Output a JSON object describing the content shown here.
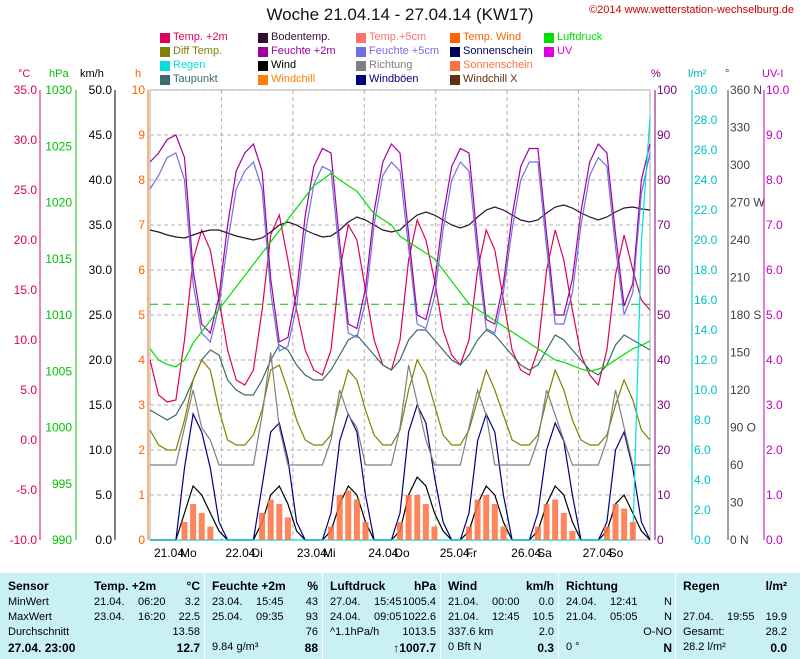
{
  "header": {
    "title": "Woche 21.04.14 - 27.04.14 (KW17)",
    "copyright": "©2014 www.wetterstation-wechselburg.de"
  },
  "legend": [
    {
      "label": "Temp. +2m",
      "color": "#e0005a"
    },
    {
      "label": "Diff Temp.",
      "color": "#808000"
    },
    {
      "label": "Regen",
      "color": "#00e0e0"
    },
    {
      "label": "Taupunkt",
      "color": "#3a6a6a"
    },
    {
      "label": "Bodentemp.",
      "color": "#301030"
    },
    {
      "label": "Feuchte +2m",
      "color": "#a000a0"
    },
    {
      "label": "Wind",
      "color": "#000000"
    },
    {
      "label": "Windchill",
      "color": "#ff8000"
    },
    {
      "label": "Temp.+5cm",
      "color": "#ff7070"
    },
    {
      "label": "Feuchte +5cm",
      "color": "#7070e0"
    },
    {
      "label": "Richtung",
      "color": "#808080"
    },
    {
      "label": "Windböen",
      "color": "#000080"
    },
    {
      "label": "Temp. Wind",
      "color": "#ff6000"
    },
    {
      "label": "Sonnenschein",
      "color": "#000060"
    },
    {
      "label": "Sonnenschein",
      "color": "#ff7040"
    },
    {
      "label": "Windchill X",
      "color": "#603010"
    },
    {
      "label": "Luftdruck",
      "color": "#00e000"
    },
    {
      "label": "UV",
      "color": "#e000e0"
    }
  ],
  "axis_units": {
    "temp": "°C",
    "pressure": "hPa",
    "wind": "km/h",
    "sun": "h",
    "humidity": "%",
    "rain": "l/m²",
    "direction": "°",
    "uv": "UV-I"
  },
  "chart_data": {
    "type": "line",
    "title": "Woche 21.04.14 - 27.04.14 (KW17)",
    "x_ticks": [
      "21.04.",
      "Mo",
      "22.04.",
      "Di",
      "23.04.",
      "Mi",
      "24.04.",
      "Do",
      "25.04.",
      "Fr",
      "26.04.",
      "Sa",
      "27.04.",
      "So"
    ],
    "axes": {
      "temp_c": {
        "range": [
          -10,
          35
        ],
        "ticks": [
          "35.0",
          "30.0",
          "25.0",
          "20.0",
          "15.0",
          "10.0",
          "5.0",
          "0.0",
          "-5.0",
          "-10.0"
        ],
        "color": "#e0005a"
      },
      "pressure_hpa": {
        "range": [
          990,
          1030
        ],
        "ticks": [
          "1030",
          "1025",
          "1020",
          "1015",
          "1010",
          "1005",
          "1000",
          "995",
          "990"
        ],
        "color": "#00c000"
      },
      "wind_kmh": {
        "range": [
          0,
          50
        ],
        "ticks": [
          "50.0",
          "45.0",
          "40.0",
          "35.0",
          "30.0",
          "25.0",
          "20.0",
          "15.0",
          "10.0",
          "5.0",
          "0.0"
        ],
        "color": "#000000"
      },
      "sun_h": {
        "range": [
          0,
          10
        ],
        "ticks": [
          "10",
          "9",
          "8",
          "7",
          "6",
          "5",
          "4",
          "3",
          "2",
          "1",
          "0"
        ],
        "color": "#ff6000"
      },
      "humidity_pct": {
        "range": [
          0,
          100
        ],
        "ticks": [
          "100",
          "90",
          "80",
          "70",
          "60",
          "50",
          "40",
          "30",
          "20",
          "10",
          "0"
        ],
        "color": "#800080"
      },
      "rain_lm2": {
        "range": [
          0,
          30
        ],
        "ticks": [
          "30.0",
          "28.0",
          "26.0",
          "24.0",
          "22.0",
          "20.0",
          "18.0",
          "16.0",
          "14.0",
          "12.0",
          "10.0",
          "8.0",
          "6.0",
          "4.0",
          "2.0",
          "0.0"
        ],
        "color": "#00c0c0"
      },
      "direction_deg": {
        "range": [
          0,
          360
        ],
        "ticks": [
          "360 N",
          "330",
          "300",
          "270 W",
          "240",
          "210",
          "180 S",
          "150",
          "120",
          "90 O",
          "60",
          "30",
          "0 N"
        ],
        "color": "#404040"
      },
      "uv_index": {
        "range": [
          0,
          10
        ],
        "ticks": [
          "10.0",
          "9.0",
          "8.0",
          "7.0",
          "6.0",
          "5.0",
          "4.0",
          "3.0",
          "2.0",
          "1.0",
          "0.0"
        ],
        "color": "#c000c0"
      }
    },
    "series": [
      {
        "name": "Temp. +2m",
        "axis": "temp_c",
        "color": "#e0005a",
        "values": [
          8.0,
          4.5,
          3.8,
          4.0,
          10.0,
          18.0,
          21.0,
          19.0,
          14.0,
          9.0,
          6.0,
          5.5,
          7.0,
          13.0,
          20.5,
          22.5,
          18.0,
          13.0,
          9.0,
          7.0,
          6.5,
          9.0,
          17.0,
          21.5,
          20.0,
          15.0,
          10.0,
          7.5,
          7.0,
          10.0,
          18.0,
          22.0,
          20.0,
          16.0,
          11.0,
          8.5,
          7.5,
          10.0,
          17.0,
          21.0,
          19.0,
          14.0,
          9.0,
          7.0,
          6.5,
          9.0,
          17.0,
          21.0,
          18.0,
          13.0,
          8.5,
          6.5,
          5.5,
          9.0,
          16.5,
          20.5,
          17.0,
          14.0,
          13.0
        ]
      },
      {
        "name": "Taupunkt",
        "axis": "temp_c",
        "color": "#3a6a6a",
        "values": [
          3.0,
          2.5,
          2.0,
          2.5,
          4.0,
          6.0,
          8.0,
          9.0,
          8.5,
          6.0,
          5.0,
          4.5,
          4.5,
          6.0,
          8.0,
          9.5,
          9.0,
          7.5,
          6.5,
          6.0,
          6.0,
          7.0,
          8.5,
          10.0,
          10.5,
          9.5,
          8.5,
          7.5,
          7.0,
          8.0,
          10.0,
          11.0,
          11.0,
          10.0,
          9.0,
          8.0,
          7.5,
          8.5,
          10.0,
          11.0,
          10.5,
          9.5,
          8.5,
          7.5,
          7.0,
          7.5,
          9.0,
          10.5,
          10.0,
          9.0,
          8.0,
          7.0,
          6.5,
          7.5,
          9.5,
          10.5,
          10.0,
          9.5,
          9.0
        ]
      },
      {
        "name": "Bodentemp.",
        "axis": "temp_c",
        "color": "#301030",
        "values": [
          21.0,
          20.8,
          20.5,
          20.3,
          20.2,
          20.5,
          20.8,
          21.0,
          21.0,
          20.7,
          20.4,
          20.2,
          20.0,
          20.2,
          20.8,
          21.5,
          21.8,
          21.5,
          21.0,
          20.6,
          20.3,
          20.4,
          21.0,
          21.8,
          22.3,
          22.0,
          21.5,
          21.0,
          20.8,
          21.0,
          21.8,
          22.5,
          22.8,
          22.5,
          22.0,
          21.5,
          21.2,
          21.5,
          22.3,
          23.0,
          23.3,
          23.0,
          22.5,
          22.0,
          21.8,
          22.0,
          22.7,
          23.3,
          23.5,
          23.2,
          22.7,
          22.3,
          22.0,
          22.3,
          22.8,
          23.2,
          23.3,
          23.1,
          23.0
        ]
      },
      {
        "name": "Diff Temp.",
        "axis": "temp_c",
        "color": "#808000",
        "values": [
          1.0,
          -0.5,
          -1.0,
          -1.0,
          2.0,
          6.0,
          8.0,
          7.0,
          3.0,
          0.0,
          -0.5,
          -0.5,
          0.5,
          3.0,
          7.0,
          7.5,
          5.0,
          2.0,
          0.0,
          -0.5,
          -0.5,
          0.5,
          4.0,
          7.0,
          6.0,
          3.0,
          0.5,
          -0.5,
          -0.5,
          1.0,
          5.0,
          8.0,
          6.5,
          3.5,
          0.5,
          -0.5,
          -0.5,
          1.0,
          4.0,
          7.0,
          5.0,
          2.5,
          0.0,
          -0.5,
          -0.5,
          0.5,
          4.0,
          7.0,
          5.0,
          2.0,
          0.0,
          -0.5,
          -0.5,
          0.5,
          3.5,
          6.0,
          4.0,
          1.0,
          0.0
        ]
      },
      {
        "name": "Feuchte +2m",
        "axis": "humidity_pct",
        "color": "#a000a0",
        "values": [
          84,
          86,
          89,
          90,
          85,
          60,
          48,
          46,
          54,
          70,
          82,
          86,
          88,
          82,
          58,
          44,
          45,
          55,
          72,
          83,
          87,
          86,
          66,
          48,
          47,
          56,
          73,
          84,
          88,
          86,
          68,
          50,
          49,
          57,
          72,
          83,
          87,
          86,
          66,
          49,
          48,
          57,
          72,
          83,
          87,
          87,
          68,
          50,
          50,
          58,
          73,
          84,
          88,
          86,
          68,
          52,
          57,
          80,
          88
        ]
      },
      {
        "name": "Feuchte +5cm",
        "axis": "humidity_pct",
        "color": "#7070e0",
        "values": [
          78,
          81,
          85,
          86,
          80,
          57,
          46,
          44,
          52,
          66,
          78,
          82,
          84,
          78,
          55,
          42,
          43,
          52,
          68,
          79,
          83,
          82,
          63,
          46,
          45,
          53,
          70,
          81,
          84,
          82,
          65,
          48,
          47,
          54,
          69,
          80,
          84,
          82,
          63,
          47,
          46,
          55,
          69,
          80,
          84,
          84,
          65,
          48,
          48,
          55,
          70,
          81,
          85,
          83,
          65,
          50,
          55,
          77,
          86
        ]
      },
      {
        "name": "Luftdruck",
        "axis": "pressure_hpa",
        "color": "#00e000",
        "values": [
          1007,
          1006,
          1005.6,
          1005.4,
          1006,
          1007.5,
          1008.5,
          1009.5,
          1010.5,
          1011.5,
          1012.5,
          1013.5,
          1014.5,
          1015.5,
          1016.5,
          1017.5,
          1018.5,
          1019.5,
          1020.5,
          1021.5,
          1022,
          1022.6,
          1022,
          1021.5,
          1021,
          1020,
          1019,
          1018.5,
          1018,
          1017,
          1016.5,
          1016,
          1015.5,
          1015,
          1014,
          1013,
          1012,
          1011,
          1010.5,
          1010,
          1009.5,
          1009,
          1008.5,
          1008,
          1007.5,
          1007,
          1006.5,
          1006,
          1005.8,
          1005.5,
          1005.2,
          1005,
          1005.2,
          1005.5,
          1006,
          1006.5,
          1007,
          1007.3,
          1007.7
        ]
      },
      {
        "name": "Wind",
        "axis": "wind_kmh",
        "color": "#000000",
        "values": [
          0,
          0,
          0,
          0,
          3,
          6,
          5,
          3,
          1,
          0,
          0,
          0,
          0,
          2,
          5,
          6,
          4,
          1,
          0,
          0,
          0,
          1,
          4,
          6,
          5,
          2,
          0,
          0,
          0,
          1,
          5,
          7,
          6,
          3,
          1,
          0,
          0,
          1,
          4,
          6,
          5,
          2,
          0,
          0,
          0,
          1,
          4,
          6,
          5,
          2,
          0,
          0,
          0,
          1,
          4,
          5,
          3,
          1,
          0
        ]
      },
      {
        "name": "Windböen",
        "axis": "wind_kmh",
        "color": "#000080",
        "values": [
          0,
          0,
          0,
          0,
          8,
          14,
          12,
          8,
          2,
          0,
          0,
          0,
          0,
          6,
          12,
          13,
          9,
          2,
          0,
          0,
          0,
          3,
          11,
          14,
          12,
          5,
          0,
          0,
          0,
          3,
          12,
          15,
          13,
          7,
          2,
          0,
          0,
          3,
          11,
          14,
          12,
          5,
          0,
          0,
          0,
          3,
          10,
          13,
          11,
          5,
          0,
          0,
          0,
          2,
          10,
          12,
          8,
          2,
          0
        ]
      },
      {
        "name": "Richtung",
        "axis": "direction_deg",
        "color": "#808080",
        "values": [
          60,
          60,
          60,
          60,
          90,
          120,
          90,
          80,
          60,
          60,
          60,
          60,
          60,
          100,
          150,
          90,
          60,
          60,
          60,
          60,
          60,
          80,
          120,
          100,
          90,
          60,
          60,
          60,
          60,
          90,
          140,
          110,
          80,
          60,
          60,
          60,
          60,
          90,
          120,
          100,
          60,
          60,
          60,
          60,
          60,
          80,
          120,
          100,
          80,
          60,
          60,
          60,
          60,
          80,
          120,
          90,
          60,
          60,
          60
        ]
      },
      {
        "name": "Regen",
        "axis": "rain_lm2",
        "color": "#00e0e0",
        "values": [
          0,
          0,
          0,
          0,
          0,
          0,
          0,
          0,
          0,
          0,
          0,
          0,
          0,
          0,
          0,
          0,
          0,
          0,
          0,
          0,
          0,
          0,
          0,
          0,
          0,
          0,
          0,
          0,
          0,
          0,
          0,
          0,
          0,
          0,
          0,
          0,
          0,
          0,
          0,
          0,
          0,
          0,
          0,
          0,
          0,
          0,
          0,
          0,
          0,
          0,
          0,
          0,
          0,
          0,
          0,
          0,
          0,
          19.9,
          28.2
        ]
      },
      {
        "name": "Sonnenschein",
        "axis": "sun_h",
        "color": "#ff7040",
        "values": [
          0,
          0,
          0,
          0,
          0.4,
          0.8,
          0.6,
          0.3,
          0,
          0,
          0,
          0,
          0,
          0.6,
          0.9,
          0.8,
          0.5,
          0,
          0,
          0,
          0,
          0.3,
          1.0,
          1.1,
          0.9,
          0.4,
          0,
          0,
          0,
          0.4,
          1.0,
          1.0,
          0.8,
          0.3,
          0,
          0,
          0,
          0.3,
          0.9,
          1.0,
          0.8,
          0.3,
          0,
          0,
          0,
          0.3,
          0.8,
          0.9,
          0.6,
          0.2,
          0,
          0,
          0,
          0.3,
          0.8,
          0.7,
          0.4,
          0,
          0
        ]
      }
    ],
    "reference_lines": [
      {
        "axis": "temp_c",
        "value": 13.58,
        "color": "#00c000",
        "style": "dashed"
      }
    ]
  },
  "stats": {
    "columns": [
      {
        "header": "Sensor",
        "unit": ""
      },
      {
        "header": "Temp. +2m",
        "unit": "°C"
      },
      {
        "header": "Feuchte +2m",
        "unit": "%"
      },
      {
        "header": "Luftdruck",
        "unit": "hPa"
      },
      {
        "header": "Wind",
        "unit": "km/h"
      },
      {
        "header": "Richtung",
        "unit": ""
      },
      {
        "header": "Regen",
        "unit": "l/m²"
      }
    ],
    "rows": [
      {
        "label": "MinWert",
        "cells": [
          [
            "21.04.",
            "06:20",
            "3.2"
          ],
          [
            "23.04.",
            "15:45",
            "43"
          ],
          [
            "27.04.",
            "15:45",
            "1005.4"
          ],
          [
            "21.04.",
            "00:00",
            "0.0"
          ],
          [
            "24.04.",
            "12:41",
            "N"
          ],
          [
            "",
            "",
            ""
          ]
        ]
      },
      {
        "label": "MaxWert",
        "cells": [
          [
            "23.04.",
            "16:20",
            "22.5"
          ],
          [
            "25.04.",
            "09:35",
            "93"
          ],
          [
            "24.04.",
            "09:05",
            "1022.6"
          ],
          [
            "21.04.",
            "12:45",
            "10.5"
          ],
          [
            "21.04.",
            "05:05",
            "N"
          ],
          [
            "27.04.",
            "19:55",
            "19.9"
          ]
        ]
      },
      {
        "label": "Durchschnitt",
        "cells": [
          [
            "",
            "",
            "13.58"
          ],
          [
            "",
            "",
            "76"
          ],
          [
            "^1.1hPa/h",
            "",
            "1013.5"
          ],
          [
            "337.6 km",
            "",
            "2.0"
          ],
          [
            "",
            "",
            "O-NO"
          ],
          [
            "Gesamt:",
            "",
            "28.2"
          ]
        ]
      },
      {
        "label": "27.04. 23:00",
        "cells": [
          [
            "",
            "",
            "12.7"
          ],
          [
            "9.84 g/m³",
            "",
            "88"
          ],
          [
            "",
            "",
            "↑1007.7"
          ],
          [
            "0 Bft N",
            "",
            "0.3"
          ],
          [
            "0 °",
            "",
            "N"
          ],
          [
            "28.2 l/m²",
            "",
            "0.0"
          ]
        ]
      }
    ]
  }
}
